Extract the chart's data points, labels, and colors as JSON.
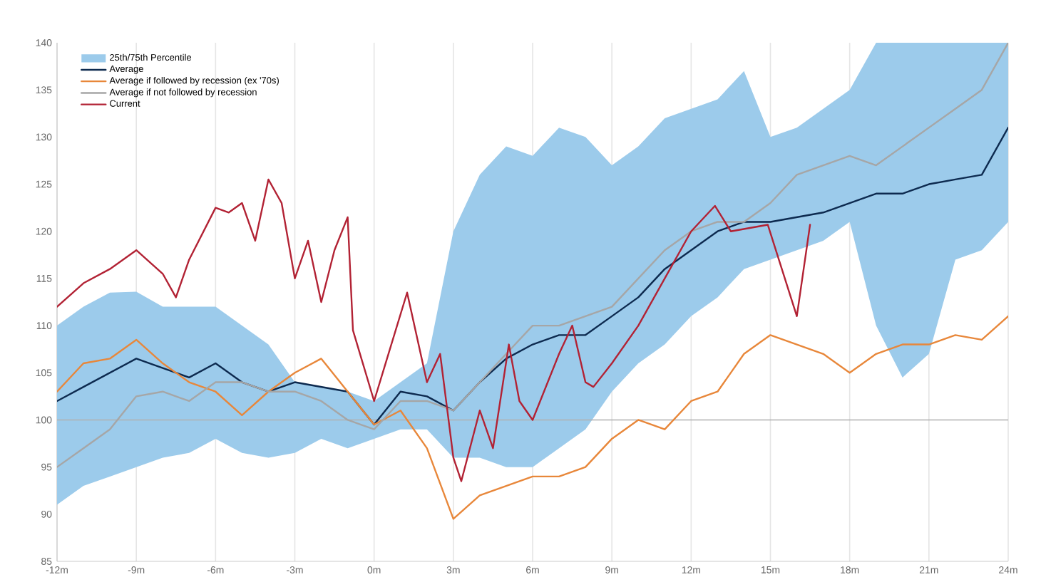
{
  "chart_data": {
    "type": "line",
    "x": [
      -12,
      -11,
      -10,
      -9,
      -8,
      -7,
      -6,
      -5,
      -4,
      -3,
      -2,
      -1,
      0,
      1,
      2,
      3,
      4,
      5,
      6,
      7,
      8,
      9,
      10,
      11,
      12,
      13,
      14,
      15,
      16,
      17,
      18,
      19,
      20,
      21,
      22,
      23,
      24
    ],
    "series": [
      {
        "name": "Average",
        "color": "#0d2a4f",
        "values": [
          102,
          103.5,
          105,
          106.5,
          105.5,
          104.5,
          106,
          104,
          103,
          104,
          103.5,
          103,
          99.5,
          103,
          102.5,
          101,
          104,
          106.5,
          108,
          109,
          109,
          111,
          113,
          116,
          118,
          120,
          121,
          121,
          121.5,
          122,
          123,
          124,
          124,
          125,
          125.5,
          126,
          131
        ],
        "upper": [
          110,
          112,
          113.5,
          113.6,
          112,
          112,
          112,
          110,
          108,
          104,
          103.5,
          103,
          102,
          104,
          106,
          120,
          126,
          129,
          128,
          131,
          130,
          127,
          129,
          132,
          133,
          134,
          137,
          130,
          131,
          133,
          135,
          140,
          140,
          140,
          140,
          140,
          140
        ],
        "lower": [
          91,
          93,
          94,
          95,
          96,
          96.5,
          98,
          96.5,
          96,
          96.5,
          98,
          97,
          98,
          99,
          99,
          96,
          96,
          95,
          95,
          97,
          99,
          103,
          106,
          108,
          111,
          113,
          116,
          117,
          118,
          119,
          121,
          110,
          104.5,
          107,
          117,
          118,
          121
        ]
      },
      {
        "name": "Average if followed by recession (ex '70s)",
        "color": "#e8873a",
        "values": [
          103,
          106,
          106.5,
          108.5,
          106,
          104,
          103,
          100.5,
          103,
          105,
          106.5,
          103,
          99.5,
          101,
          97,
          89.5,
          92,
          93,
          94,
          94,
          95,
          98,
          100,
          99,
          102,
          103,
          107,
          109,
          108,
          107,
          105,
          107,
          108,
          108,
          109,
          108.5,
          111
        ]
      },
      {
        "name": "Average if not followed by recession",
        "color": "#a6a6a6",
        "values": [
          95,
          97,
          99,
          102.5,
          103,
          102,
          104,
          104,
          103,
          103,
          102,
          100,
          99,
          102,
          102,
          101,
          104,
          107,
          110,
          110,
          111,
          112,
          115,
          118,
          120,
          121,
          121,
          123,
          126,
          127,
          128,
          127,
          129,
          131,
          133,
          135,
          140
        ]
      },
      {
        "name": "Current",
        "color": "#b22234",
        "x": [
          -12,
          -11,
          -10,
          -9,
          -8,
          -7.5,
          -7,
          -6,
          -5.5,
          -5,
          -4.5,
          -4,
          -3.5,
          -3,
          -2.5,
          -2,
          -1.5,
          -1,
          -0.8,
          0,
          1.25,
          2,
          2.5,
          3,
          3.3,
          4,
          4.5,
          5.1,
          5.5,
          6,
          7,
          7.5,
          8,
          8.3,
          9,
          10,
          11,
          12,
          12.9,
          13.5,
          14.9,
          16,
          16.5
        ],
        "values": [
          112,
          114.5,
          116,
          118,
          115.5,
          113,
          117,
          122.5,
          122,
          123,
          119,
          125.5,
          123,
          115,
          119,
          112.5,
          118,
          121.5,
          109.5,
          102,
          113.5,
          104,
          107,
          96,
          93.5,
          101,
          97,
          108,
          102,
          100,
          107,
          110,
          104,
          103.5,
          106,
          110,
          115,
          120,
          122.7,
          120,
          120.7,
          111,
          120.7
        ]
      }
    ],
    "annotations": [
      "25th/75th Percentile"
    ],
    "xlim": [
      -12,
      24
    ],
    "ylim": [
      85,
      140
    ],
    "xticks": [
      {
        "value": -12,
        "label": "-12m"
      },
      {
        "value": -9,
        "label": "-9m"
      },
      {
        "value": -6,
        "label": "-6m"
      },
      {
        "value": -3,
        "label": "-3m"
      },
      {
        "value": 0,
        "label": "0m"
      },
      {
        "value": 3,
        "label": "3m"
      },
      {
        "value": 6,
        "label": "6m"
      },
      {
        "value": 9,
        "label": "9m"
      },
      {
        "value": 12,
        "label": "12m"
      },
      {
        "value": 15,
        "label": "15m"
      },
      {
        "value": 18,
        "label": "18m"
      },
      {
        "value": 21,
        "label": "21m"
      },
      {
        "value": 24,
        "label": "24m"
      }
    ],
    "yticks": [
      85,
      90,
      95,
      100,
      105,
      110,
      115,
      120,
      125,
      130,
      135,
      140
    ],
    "ref_lines": [
      {
        "axis": "y",
        "value": 100,
        "color": "#b0b0b0"
      }
    ],
    "grid": "x",
    "legend": "top left"
  }
}
